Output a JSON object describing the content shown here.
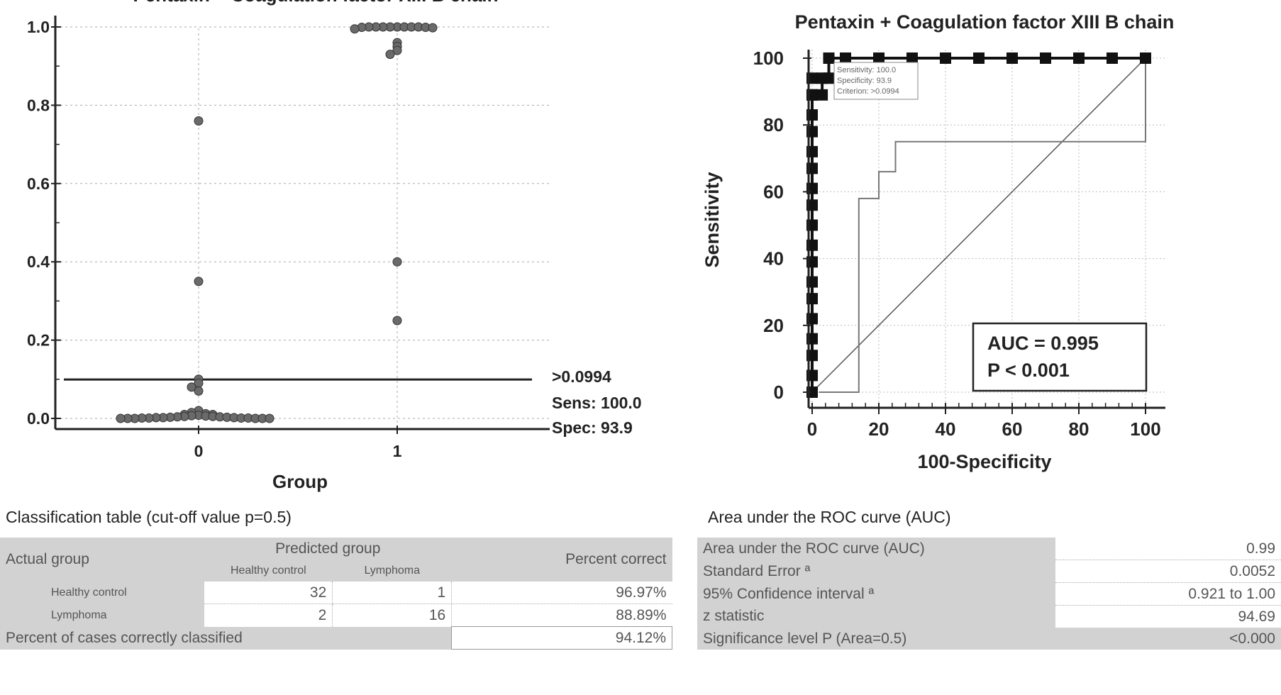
{
  "left_chart": {
    "title": "Pentaxin + Coagulation factor XIII B chain",
    "xlabel": "Group",
    "cutoff_labels": [
      ">0.0994",
      "Sens: 100.0",
      "Spec: 93.9"
    ]
  },
  "right_chart": {
    "title": "Pentaxin + Coagulation factor XIII B chain",
    "xlabel": "100-Specificity",
    "ylabel": "Sensitivity",
    "auc_text": "AUC = 0.995",
    "p_text": "P < 0.001",
    "small_legend": [
      "Sensitivity: 100.0",
      "Specificity: 93.9",
      "Criterion: >0.0994"
    ]
  },
  "chart_data": [
    {
      "type": "scatter",
      "title": "Pentaxin + Coagulation factor XIII B chain",
      "xlabel": "Group",
      "ylabel": "",
      "categories": [
        "0",
        "1"
      ],
      "ylim": [
        0,
        1.0
      ],
      "yticks": [
        "0.0",
        "0.2",
        "0.4",
        "0.6",
        "0.8",
        "1.0"
      ],
      "cutoff": 0.0994,
      "series": [
        {
          "name": "0",
          "values": [
            0.76,
            0.35,
            0.1,
            0.09,
            0.08,
            0.07,
            0.02,
            0.015,
            0.012,
            0.01,
            0.01,
            0.008,
            0.007,
            0.006,
            0.005,
            0.005,
            0.004,
            0.004,
            0.003,
            0.003,
            0.002,
            0.002,
            0.002,
            0.001,
            0.001,
            0.001,
            0.001,
            0.0,
            0.0,
            0.0,
            0.0,
            0.0,
            0.0
          ]
        },
        {
          "name": "1",
          "values": [
            1.0,
            1.0,
            1.0,
            1.0,
            1.0,
            1.0,
            1.0,
            1.0,
            0.999,
            0.999,
            0.998,
            0.995,
            0.96,
            0.95,
            0.94,
            0.93,
            0.4,
            0.25
          ]
        }
      ]
    },
    {
      "type": "line",
      "title": "Pentaxin + Coagulation factor XIII B chain",
      "xlabel": "100-Specificity",
      "ylabel": "Sensitivity",
      "xlim": [
        0,
        100
      ],
      "ylim": [
        0,
        100
      ],
      "xticks": [
        "0",
        "20",
        "40",
        "60",
        "80",
        "100"
      ],
      "yticks": [
        "0",
        "20",
        "40",
        "60",
        "80",
        "100"
      ],
      "auc": 0.995,
      "series": [
        {
          "name": "ROC curve",
          "x": [
            0,
            0,
            0,
            0,
            0,
            0,
            0,
            0,
            0,
            0,
            0,
            0,
            0,
            0,
            0,
            0,
            0,
            0,
            0,
            0,
            3,
            3,
            5,
            5,
            10,
            20,
            30,
            40,
            50,
            60,
            70,
            80,
            90,
            100
          ],
          "y": [
            0,
            5,
            11,
            16,
            22,
            28,
            33,
            39,
            44,
            50,
            56,
            61,
            67,
            72,
            78,
            83,
            89,
            89,
            89,
            94,
            89,
            94,
            94,
            100,
            100,
            100,
            100,
            100,
            100,
            100,
            100,
            100,
            100,
            100
          ]
        },
        {
          "name": "Confidence bound",
          "x": [
            2,
            14,
            14,
            20,
            20,
            25,
            25,
            100,
            100
          ],
          "y": [
            0,
            0,
            58,
            58,
            66,
            66,
            75,
            75,
            100
          ]
        },
        {
          "name": "Reference line",
          "x": [
            0,
            100
          ],
          "y": [
            0,
            100
          ]
        }
      ]
    }
  ],
  "classification": {
    "title": "Classification table (cut-off value p=0.5)",
    "actual_group": "Actual group",
    "predicted_group": "Predicted group",
    "percent_correct": "Percent correct",
    "col_healthy": "Healthy control",
    "col_lymphoma": "Lymphoma",
    "rows": [
      {
        "label": "Healthy control",
        "a": "32",
        "b": "1",
        "pct": "96.97%"
      },
      {
        "label": "Lymphoma",
        "a": "2",
        "b": "16",
        "pct": "88.89%"
      }
    ],
    "total_label": "Percent of cases correctly classified",
    "total_pct": "94.12%"
  },
  "auc_table": {
    "title": "Area under the ROC curve (AUC)",
    "rows": [
      {
        "label": "Area under the ROC curve (AUC)",
        "value": "0.99"
      },
      {
        "label": "Standard Error ª",
        "value": "0.0052"
      },
      {
        "label": "95% Confidence interval ª",
        "value": "0.921 to 1.00"
      },
      {
        "label": "z statistic",
        "value": "94.69"
      },
      {
        "label": "Significance level P (Area=0.5)",
        "value": "<0.000"
      }
    ]
  }
}
